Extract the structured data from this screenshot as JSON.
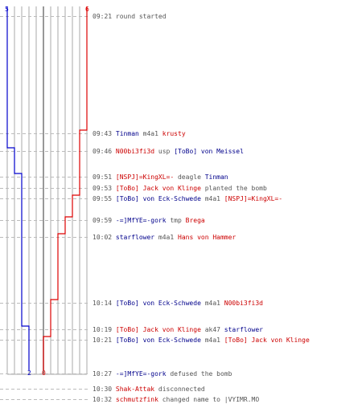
{
  "colors": {
    "ct": "#0000cc",
    "t": "#dd0000",
    "grid": "#aaaaaa",
    "dash": "#bbbbbb",
    "center": "#777777"
  },
  "scores": {
    "ct_start": "5",
    "t_start": "6",
    "ct_end": "2",
    "t_end": "0"
  },
  "log": [
    {
      "time": "09:21",
      "parts": [
        {
          "text": "round started",
          "team": "plain"
        }
      ]
    },
    {
      "time": "09:43",
      "parts": [
        {
          "text": "Tinman",
          "team": "blue"
        },
        {
          "text": " m4a1 ",
          "team": "plain"
        },
        {
          "text": "krusty",
          "team": "red"
        }
      ]
    },
    {
      "time": "09:46",
      "parts": [
        {
          "text": "N00bi3fi3d",
          "team": "red"
        },
        {
          "text": " usp ",
          "team": "plain"
        },
        {
          "text": "[ToBo] von Meissel",
          "team": "blue"
        }
      ]
    },
    {
      "time": "09:51",
      "parts": [
        {
          "text": "[NSPJ]=KingXL=-",
          "team": "red"
        },
        {
          "text": " deagle ",
          "team": "plain"
        },
        {
          "text": "Tinman",
          "team": "blue"
        }
      ]
    },
    {
      "time": "09:53",
      "parts": [
        {
          "text": "[ToBo] Jack von Klinge",
          "team": "red"
        },
        {
          "text": " planted the bomb",
          "team": "plain"
        }
      ]
    },
    {
      "time": "09:55",
      "parts": [
        {
          "text": "[ToBo] von Eck-Schwede",
          "team": "blue"
        },
        {
          "text": " m4a1 ",
          "team": "plain"
        },
        {
          "text": "[NSPJ]=KingXL=-",
          "team": "red"
        }
      ]
    },
    {
      "time": "09:59",
      "parts": [
        {
          "text": "-=]MfYE=-gork",
          "team": "blue"
        },
        {
          "text": " tmp ",
          "team": "plain"
        },
        {
          "text": "Brega",
          "team": "red"
        }
      ]
    },
    {
      "time": "10:02",
      "parts": [
        {
          "text": "starflower",
          "team": "blue"
        },
        {
          "text": " m4a1 ",
          "team": "plain"
        },
        {
          "text": "Hans von Hammer",
          "team": "red"
        }
      ]
    },
    {
      "time": "10:14",
      "parts": [
        {
          "text": "[ToBo] von Eck-Schwede",
          "team": "blue"
        },
        {
          "text": " m4a1 ",
          "team": "plain"
        },
        {
          "text": "N00bi3fi3d",
          "team": "red"
        }
      ]
    },
    {
      "time": "10:19",
      "parts": [
        {
          "text": "[ToBo] Jack von Klinge",
          "team": "red"
        },
        {
          "text": " ak47 ",
          "team": "plain"
        },
        {
          "text": "starflower",
          "team": "blue"
        }
      ]
    },
    {
      "time": "10:21",
      "parts": [
        {
          "text": "[ToBo] von Eck-Schwede",
          "team": "blue"
        },
        {
          "text": " m4a1 ",
          "team": "plain"
        },
        {
          "text": "[ToBo] Jack von Klinge",
          "team": "red"
        }
      ]
    },
    {
      "time": "10:27",
      "parts": [
        {
          "text": "-=]MfYE=-gork",
          "team": "blue"
        },
        {
          "text": " defused the bomb",
          "team": "plain"
        }
      ]
    },
    {
      "time": "10:30",
      "parts": [
        {
          "text": "Shak-Attak",
          "team": "red"
        },
        {
          "text": " disconnected",
          "team": "plain"
        }
      ]
    },
    {
      "time": "10:32",
      "parts": [
        {
          "text": "schmutzfink",
          "team": "red"
        },
        {
          "text": " changed name to |VYIMR.MO",
          "team": "plain"
        }
      ]
    }
  ]
}
